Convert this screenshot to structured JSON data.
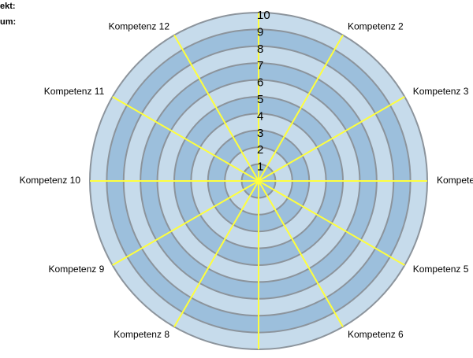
{
  "header": {
    "lines": [
      "ekt:",
      "um:"
    ]
  },
  "chart_data": {
    "type": "radar",
    "categories": [
      null,
      "Kompetenz 2",
      "Kompetenz 3",
      "Kompete",
      "Kompetenz 5",
      "Kompetenz 6",
      null,
      "Kompetenz 8",
      "Kompetenz 9",
      "Kompetenz 10",
      "Kompetenz 11",
      "Kompetenz 12"
    ],
    "ylim": [
      0,
      10
    ],
    "yticks": [
      1,
      2,
      3,
      4,
      5,
      6,
      7,
      8,
      9,
      10
    ],
    "band_colors": [
      "#c6dbeb",
      "#9cbfdc"
    ],
    "ring_color": "#8c949c",
    "spoke_color": "#ffff3c"
  }
}
